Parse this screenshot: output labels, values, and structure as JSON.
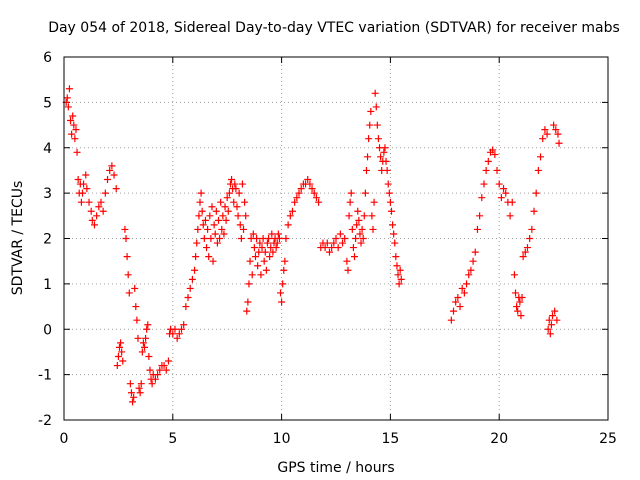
{
  "chart_data": {
    "type": "scatter",
    "title": "Day 054 of 2018, Sidereal Day-to-day VTEC variation (SDTVAR) for receiver mabs",
    "xlabel": "GPS time / hours",
    "ylabel": "SDTVAR / TECUs",
    "xlim": [
      0,
      25
    ],
    "ylim": [
      -2,
      6
    ],
    "xticks": [
      "0",
      "5",
      "10",
      "15",
      "20",
      "25"
    ],
    "yticks": [
      "-2",
      "-1",
      "0",
      "1",
      "2",
      "3",
      "4",
      "5",
      "6"
    ],
    "grid": true,
    "marker": "plus",
    "series": [
      {
        "name": "SDTVAR",
        "color": "#ff0000",
        "points": [
          [
            0.1,
            5.0
          ],
          [
            0.15,
            5.1
          ],
          [
            0.2,
            4.9
          ],
          [
            0.25,
            5.3
          ],
          [
            0.3,
            4.6
          ],
          [
            0.35,
            4.3
          ],
          [
            0.4,
            4.7
          ],
          [
            0.45,
            4.5
          ],
          [
            0.5,
            4.2
          ],
          [
            0.55,
            4.4
          ],
          [
            0.6,
            3.9
          ],
          [
            0.65,
            3.3
          ],
          [
            0.7,
            3.0
          ],
          [
            0.75,
            3.2
          ],
          [
            0.8,
            2.8
          ],
          [
            0.85,
            3.0
          ],
          [
            0.9,
            3.2
          ],
          [
            1.0,
            3.4
          ],
          [
            1.05,
            3.1
          ],
          [
            1.15,
            2.8
          ],
          [
            1.25,
            2.6
          ],
          [
            1.3,
            2.4
          ],
          [
            1.4,
            2.3
          ],
          [
            1.5,
            2.5
          ],
          [
            1.6,
            2.7
          ],
          [
            1.7,
            2.8
          ],
          [
            1.8,
            2.6
          ],
          [
            1.9,
            3.0
          ],
          [
            2.0,
            3.3
          ],
          [
            2.1,
            3.5
          ],
          [
            2.2,
            3.6
          ],
          [
            2.3,
            3.4
          ],
          [
            2.4,
            3.1
          ],
          [
            2.45,
            -0.8
          ],
          [
            2.5,
            -0.6
          ],
          [
            2.55,
            -0.4
          ],
          [
            2.6,
            -0.3
          ],
          [
            2.65,
            -0.5
          ],
          [
            2.7,
            -0.7
          ],
          [
            2.8,
            2.2
          ],
          [
            2.85,
            2.0
          ],
          [
            2.9,
            1.6
          ],
          [
            2.95,
            1.2
          ],
          [
            3.0,
            0.8
          ],
          [
            3.05,
            -1.2
          ],
          [
            3.1,
            -1.4
          ],
          [
            3.15,
            -1.6
          ],
          [
            3.2,
            -1.5
          ],
          [
            3.25,
            0.9
          ],
          [
            3.3,
            0.5
          ],
          [
            3.35,
            0.2
          ],
          [
            3.4,
            -0.2
          ],
          [
            3.45,
            -1.3
          ],
          [
            3.5,
            -1.4
          ],
          [
            3.55,
            -1.2
          ],
          [
            3.6,
            -0.5
          ],
          [
            3.65,
            -0.3
          ],
          [
            3.7,
            -0.4
          ],
          [
            3.75,
            -0.2
          ],
          [
            3.8,
            0.0
          ],
          [
            3.85,
            0.1
          ],
          [
            3.9,
            -0.6
          ],
          [
            3.95,
            -0.9
          ],
          [
            4.0,
            -1.1
          ],
          [
            4.05,
            -1.2
          ],
          [
            4.1,
            -1.0
          ],
          [
            4.2,
            -1.1
          ],
          [
            4.3,
            -1.0
          ],
          [
            4.4,
            -0.9
          ],
          [
            4.5,
            -0.8
          ],
          [
            4.6,
            -0.8
          ],
          [
            4.7,
            -0.9
          ],
          [
            4.8,
            -0.7
          ],
          [
            4.85,
            -0.1
          ],
          [
            4.9,
            0.0
          ],
          [
            5.0,
            -0.1
          ],
          [
            5.1,
            0.0
          ],
          [
            5.2,
            -0.2
          ],
          [
            5.3,
            -0.1
          ],
          [
            5.4,
            0.0
          ],
          [
            5.5,
            0.1
          ],
          [
            5.6,
            0.5
          ],
          [
            5.7,
            0.7
          ],
          [
            5.8,
            0.9
          ],
          [
            5.9,
            1.1
          ],
          [
            6.0,
            1.3
          ],
          [
            6.05,
            1.6
          ],
          [
            6.1,
            1.9
          ],
          [
            6.15,
            2.2
          ],
          [
            6.2,
            2.5
          ],
          [
            6.25,
            2.8
          ],
          [
            6.3,
            3.0
          ],
          [
            6.35,
            2.6
          ],
          [
            6.4,
            2.3
          ],
          [
            6.45,
            2.0
          ],
          [
            6.5,
            2.4
          ],
          [
            6.55,
            1.8
          ],
          [
            6.6,
            2.2
          ],
          [
            6.65,
            1.6
          ],
          [
            6.7,
            2.5
          ],
          [
            6.75,
            2.0
          ],
          [
            6.8,
            2.7
          ],
          [
            6.85,
            1.5
          ],
          [
            6.9,
            2.3
          ],
          [
            6.95,
            2.1
          ],
          [
            7.0,
            2.6
          ],
          [
            7.05,
            1.9
          ],
          [
            7.1,
            2.4
          ],
          [
            7.15,
            2.0
          ],
          [
            7.2,
            2.8
          ],
          [
            7.25,
            2.2
          ],
          [
            7.3,
            2.5
          ],
          [
            7.35,
            2.1
          ],
          [
            7.4,
            2.7
          ],
          [
            7.45,
            2.4
          ],
          [
            7.5,
            2.9
          ],
          [
            7.55,
            2.6
          ],
          [
            7.6,
            3.0
          ],
          [
            7.65,
            3.2
          ],
          [
            7.7,
            3.3
          ],
          [
            7.75,
            3.1
          ],
          [
            7.8,
            2.8
          ],
          [
            7.85,
            3.2
          ],
          [
            7.9,
            3.1
          ],
          [
            7.95,
            2.7
          ],
          [
            8.0,
            2.5
          ],
          [
            8.05,
            3.0
          ],
          [
            8.1,
            2.3
          ],
          [
            8.15,
            2.0
          ],
          [
            8.2,
            3.2
          ],
          [
            8.25,
            2.2
          ],
          [
            8.3,
            2.8
          ],
          [
            8.35,
            2.5
          ],
          [
            8.4,
            0.4
          ],
          [
            8.45,
            0.6
          ],
          [
            8.5,
            1.0
          ],
          [
            8.55,
            1.5
          ],
          [
            8.6,
            2.0
          ],
          [
            8.65,
            1.2
          ],
          [
            8.7,
            2.1
          ],
          [
            8.75,
            1.8
          ],
          [
            8.8,
            1.6
          ],
          [
            8.85,
            2.0
          ],
          [
            8.9,
            1.4
          ],
          [
            8.95,
            1.7
          ],
          [
            9.0,
            1.9
          ],
          [
            9.05,
            1.2
          ],
          [
            9.1,
            1.8
          ],
          [
            9.15,
            2.0
          ],
          [
            9.2,
            1.5
          ],
          [
            9.25,
            1.7
          ],
          [
            9.3,
            1.3
          ],
          [
            9.35,
            1.9
          ],
          [
            9.4,
            2.0
          ],
          [
            9.45,
            1.6
          ],
          [
            9.5,
            1.8
          ],
          [
            9.55,
            2.1
          ],
          [
            9.6,
            1.7
          ],
          [
            9.65,
            1.9
          ],
          [
            9.7,
            2.0
          ],
          [
            9.75,
            1.8
          ],
          [
            9.8,
            1.9
          ],
          [
            9.85,
            2.1
          ],
          [
            9.9,
            2.0
          ],
          [
            9.95,
            0.8
          ],
          [
            10.0,
            0.6
          ],
          [
            10.05,
            1.0
          ],
          [
            10.1,
            1.3
          ],
          [
            10.15,
            1.5
          ],
          [
            10.2,
            2.0
          ],
          [
            10.3,
            2.3
          ],
          [
            10.4,
            2.5
          ],
          [
            10.5,
            2.6
          ],
          [
            10.6,
            2.8
          ],
          [
            10.7,
            2.9
          ],
          [
            10.8,
            3.0
          ],
          [
            10.9,
            3.1
          ],
          [
            11.0,
            3.2
          ],
          [
            11.1,
            3.2
          ],
          [
            11.2,
            3.3
          ],
          [
            11.3,
            3.2
          ],
          [
            11.4,
            3.1
          ],
          [
            11.5,
            3.0
          ],
          [
            11.6,
            2.9
          ],
          [
            11.7,
            2.8
          ],
          [
            11.8,
            1.8
          ],
          [
            11.9,
            1.9
          ],
          [
            12.0,
            1.8
          ],
          [
            12.1,
            1.9
          ],
          [
            12.2,
            1.7
          ],
          [
            12.3,
            1.8
          ],
          [
            12.4,
            1.9
          ],
          [
            12.5,
            2.0
          ],
          [
            12.6,
            1.8
          ],
          [
            12.7,
            2.1
          ],
          [
            12.8,
            1.9
          ],
          [
            12.9,
            2.0
          ],
          [
            13.0,
            1.5
          ],
          [
            13.05,
            1.3
          ],
          [
            13.1,
            2.5
          ],
          [
            13.15,
            2.8
          ],
          [
            13.2,
            3.0
          ],
          [
            13.25,
            2.2
          ],
          [
            13.3,
            1.8
          ],
          [
            13.35,
            1.6
          ],
          [
            13.4,
            2.0
          ],
          [
            13.45,
            2.3
          ],
          [
            13.5,
            2.6
          ],
          [
            13.55,
            2.4
          ],
          [
            13.6,
            2.1
          ],
          [
            13.65,
            1.9
          ],
          [
            13.7,
            2.2
          ],
          [
            13.75,
            2.0
          ],
          [
            13.8,
            2.5
          ],
          [
            13.85,
            3.0
          ],
          [
            13.9,
            3.5
          ],
          [
            13.95,
            3.8
          ],
          [
            14.0,
            4.2
          ],
          [
            14.05,
            4.5
          ],
          [
            14.1,
            4.8
          ],
          [
            14.15,
            2.5
          ],
          [
            14.2,
            2.2
          ],
          [
            14.25,
            2.8
          ],
          [
            14.3,
            5.2
          ],
          [
            14.35,
            4.9
          ],
          [
            14.4,
            4.5
          ],
          [
            14.45,
            4.2
          ],
          [
            14.5,
            4.0
          ],
          [
            14.55,
            3.8
          ],
          [
            14.6,
            3.5
          ],
          [
            14.65,
            3.7
          ],
          [
            14.7,
            3.9
          ],
          [
            14.75,
            4.0
          ],
          [
            14.8,
            3.7
          ],
          [
            14.85,
            3.5
          ],
          [
            14.9,
            3.2
          ],
          [
            14.95,
            3.0
          ],
          [
            15.0,
            2.8
          ],
          [
            15.05,
            2.6
          ],
          [
            15.1,
            2.3
          ],
          [
            15.15,
            2.1
          ],
          [
            15.2,
            1.9
          ],
          [
            15.25,
            1.6
          ],
          [
            15.3,
            1.4
          ],
          [
            15.35,
            1.2
          ],
          [
            15.4,
            1.0
          ],
          [
            15.45,
            1.3
          ],
          [
            15.5,
            1.1
          ],
          [
            17.8,
            0.2
          ],
          [
            17.9,
            0.4
          ],
          [
            18.0,
            0.6
          ],
          [
            18.1,
            0.7
          ],
          [
            18.2,
            0.5
          ],
          [
            18.3,
            0.9
          ],
          [
            18.4,
            0.8
          ],
          [
            18.5,
            1.0
          ],
          [
            18.6,
            1.2
          ],
          [
            18.7,
            1.3
          ],
          [
            18.8,
            1.5
          ],
          [
            18.9,
            1.7
          ],
          [
            19.0,
            2.2
          ],
          [
            19.1,
            2.5
          ],
          [
            19.2,
            2.9
          ],
          [
            19.3,
            3.2
          ],
          [
            19.4,
            3.5
          ],
          [
            19.5,
            3.7
          ],
          [
            19.6,
            3.9
          ],
          [
            19.7,
            3.95
          ],
          [
            19.8,
            3.85
          ],
          [
            19.9,
            3.5
          ],
          [
            20.0,
            3.2
          ],
          [
            20.1,
            2.9
          ],
          [
            20.2,
            3.1
          ],
          [
            20.3,
            3.0
          ],
          [
            20.4,
            2.8
          ],
          [
            20.5,
            2.5
          ],
          [
            20.6,
            2.8
          ],
          [
            20.7,
            1.2
          ],
          [
            20.75,
            0.8
          ],
          [
            20.8,
            0.5
          ],
          [
            20.85,
            0.4
          ],
          [
            20.9,
            0.7
          ],
          [
            20.95,
            0.6
          ],
          [
            21.0,
            0.3
          ],
          [
            21.05,
            0.7
          ],
          [
            21.1,
            1.6
          ],
          [
            21.2,
            1.7
          ],
          [
            21.3,
            1.8
          ],
          [
            21.4,
            2.0
          ],
          [
            21.5,
            2.2
          ],
          [
            21.6,
            2.6
          ],
          [
            21.7,
            3.0
          ],
          [
            21.8,
            3.5
          ],
          [
            21.9,
            3.8
          ],
          [
            22.0,
            4.2
          ],
          [
            22.1,
            4.4
          ],
          [
            22.2,
            4.3
          ],
          [
            22.25,
            0.0
          ],
          [
            22.3,
            0.2
          ],
          [
            22.35,
            -0.1
          ],
          [
            22.4,
            0.1
          ],
          [
            22.45,
            0.3
          ],
          [
            22.5,
            4.5
          ],
          [
            22.55,
            0.4
          ],
          [
            22.6,
            4.4
          ],
          [
            22.65,
            0.2
          ],
          [
            22.7,
            4.3
          ],
          [
            22.75,
            4.1
          ]
        ]
      }
    ]
  }
}
